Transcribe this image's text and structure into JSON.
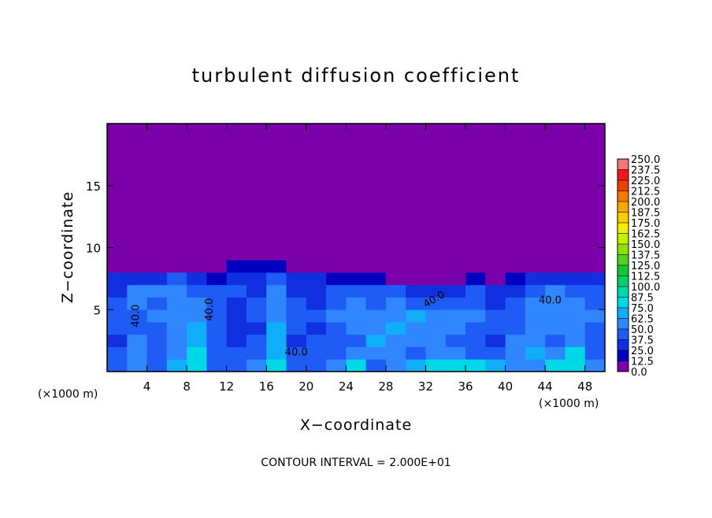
{
  "chart_data": {
    "type": "contour",
    "title": "turbulent diffusion coefficient",
    "xlabel": "X−coordinate",
    "ylabel": "Z−coordinate",
    "x_unit_left": "(×1000 m)",
    "x_unit_right": "(×1000 m)",
    "footer": "CONTOUR INTERVAL = 2.000E+01",
    "contour_labels": [
      "40.0",
      "40.0",
      "40.0",
      "40.0",
      "40.0"
    ],
    "xlim": [
      0,
      50
    ],
    "ylim": [
      0,
      20
    ],
    "xticks": [
      4,
      8,
      12,
      16,
      20,
      24,
      28,
      32,
      36,
      40,
      44,
      48
    ],
    "yticks": [
      5,
      10,
      15
    ],
    "x_edges": [
      0,
      2,
      4,
      6,
      8,
      10,
      12,
      14,
      16,
      18,
      20,
      22,
      24,
      26,
      28,
      30,
      32,
      34,
      36,
      38,
      40,
      42,
      44,
      46,
      48,
      50
    ],
    "z_edges": [
      0,
      1,
      2,
      3,
      4,
      5,
      6,
      7,
      8,
      9,
      20
    ],
    "values": [
      [
        45,
        50,
        40,
        70,
        80,
        45,
        40,
        50,
        75,
        40,
        45,
        50,
        75,
        45,
        55,
        70,
        75,
        80,
        75,
        70,
        55,
        50,
        75,
        85,
        50
      ],
      [
        40,
        55,
        45,
        60,
        75,
        45,
        40,
        45,
        70,
        40,
        45,
        45,
        60,
        55,
        50,
        45,
        60,
        50,
        45,
        40,
        55,
        70,
        60,
        75,
        45
      ],
      [
        35,
        60,
        45,
        55,
        70,
        40,
        35,
        40,
        70,
        35,
        40,
        40,
        45,
        65,
        55,
        50,
        60,
        40,
        40,
        35,
        60,
        55,
        45,
        60,
        45
      ],
      [
        40,
        45,
        40,
        55,
        65,
        40,
        35,
        35,
        65,
        40,
        35,
        45,
        50,
        55,
        65,
        60,
        50,
        55,
        45,
        40,
        45,
        55,
        50,
        55,
        40
      ],
      [
        45,
        40,
        50,
        55,
        60,
        40,
        35,
        40,
        60,
        40,
        40,
        50,
        55,
        60,
        55,
        65,
        55,
        50,
        50,
        40,
        45,
        55,
        55,
        55,
        50
      ],
      [
        40,
        55,
        45,
        50,
        55,
        40,
        35,
        40,
        55,
        40,
        35,
        45,
        50,
        45,
        50,
        45,
        40,
        40,
        45,
        30,
        40,
        50,
        60,
        55,
        45
      ],
      [
        35,
        50,
        50,
        55,
        45,
        40,
        40,
        35,
        55,
        35,
        35,
        40,
        40,
        45,
        40,
        30,
        25,
        35,
        40,
        30,
        35,
        45,
        55,
        45,
        40
      ],
      [
        25,
        30,
        35,
        40,
        30,
        20,
        35,
        35,
        40,
        30,
        25,
        20,
        20,
        15,
        10,
        5,
        5,
        5,
        20,
        10,
        15,
        25,
        35,
        35,
        30
      ],
      [
        0,
        0,
        0,
        5,
        0,
        0,
        15,
        15,
        15,
        10,
        5,
        0,
        0,
        0,
        0,
        0,
        0,
        0,
        0,
        0,
        0,
        0,
        0,
        0,
        0
      ],
      [
        0,
        0,
        0,
        0,
        0,
        0,
        0,
        0,
        0,
        0,
        0,
        0,
        0,
        0,
        0,
        0,
        0,
        0,
        0,
        0,
        0,
        0,
        0,
        0,
        0
      ]
    ],
    "colorbar": {
      "ticks": [
        {
          "value": 0,
          "label": "0.0"
        },
        {
          "value": 12.5,
          "label": "12.5"
        },
        {
          "value": 25,
          "label": "25.0"
        },
        {
          "value": 37.5,
          "label": "37.5"
        },
        {
          "value": 50,
          "label": "50.0"
        },
        {
          "value": 62.5,
          "label": "62.5"
        },
        {
          "value": 75,
          "label": "75.0"
        },
        {
          "value": 87.5,
          "label": "87.5"
        },
        {
          "value": 100,
          "label": "100.0"
        },
        {
          "value": 112.5,
          "label": "112.5"
        },
        {
          "value": 125,
          "label": "125.0"
        },
        {
          "value": 137.5,
          "label": "137.5"
        },
        {
          "value": 150,
          "label": "150.0"
        },
        {
          "value": 162.5,
          "label": "162.5"
        },
        {
          "value": 175,
          "label": "175.0"
        },
        {
          "value": 187.5,
          "label": "187.5"
        },
        {
          "value": 200,
          "label": "200.0"
        },
        {
          "value": 212.5,
          "label": "212.5"
        },
        {
          "value": 225,
          "label": "225.0"
        },
        {
          "value": 237.5,
          "label": "237.5"
        },
        {
          "value": 250,
          "label": "250.0"
        }
      ],
      "colors": [
        "#7a00aa",
        "#0000c0",
        "#1030e0",
        "#1f5cf5",
        "#2f86ff",
        "#10aef8",
        "#00d8e8",
        "#00d8b0",
        "#00d070",
        "#10c830",
        "#50d020",
        "#90e000",
        "#c8f000",
        "#f0f000",
        "#f8d000",
        "#f8a800",
        "#f87800",
        "#f04000",
        "#f01818",
        "#f07878"
      ]
    }
  }
}
